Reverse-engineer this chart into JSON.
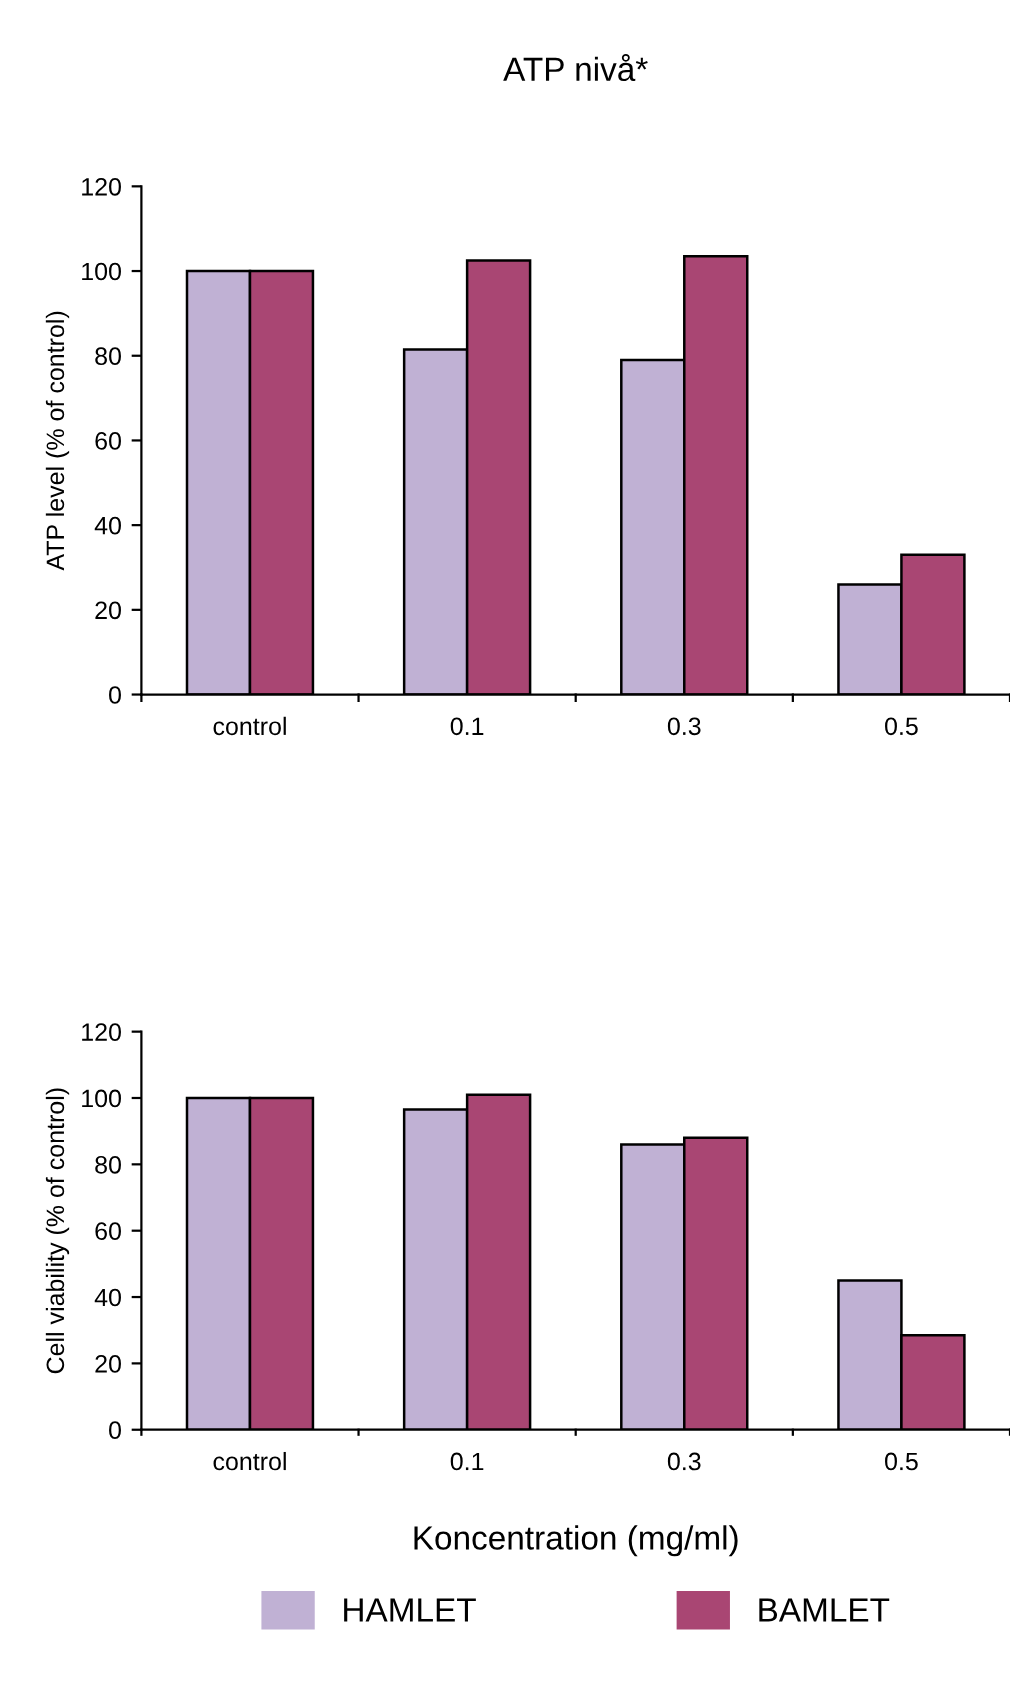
{
  "chart_data": [
    {
      "type": "bar",
      "title": "ATP nivå*",
      "ylabel": "ATP level (% of control)",
      "categories": [
        "control",
        "0.1",
        "0.3",
        "0.5"
      ],
      "series": [
        {
          "color": "#c0b1d4",
          "values": [
            100,
            81.5,
            79,
            26
          ]
        },
        {
          "color": "#a94673",
          "values": [
            100,
            102.5,
            103.5,
            33
          ]
        }
      ],
      "ylim": [
        0,
        120
      ],
      "yticks": [
        0,
        20,
        40,
        60,
        80,
        100,
        120
      ],
      "grid": false,
      "legend": false
    },
    {
      "type": "bar",
      "xlabel": "Koncentration (mg/ml)",
      "ylabel": "Cell viability (% of control)",
      "categories": [
        "control",
        "0.1",
        "0.3",
        "0.5"
      ],
      "series": [
        {
          "name": "HAMLET",
          "color": "#c0b1d4",
          "values": [
            100,
            96.5,
            86,
            45
          ]
        },
        {
          "name": "BAMLET",
          "color": "#a94673",
          "values": [
            100,
            101,
            88,
            28.5
          ]
        }
      ],
      "ylim": [
        0,
        120
      ],
      "yticks": [
        0,
        20,
        40,
        60,
        80,
        100,
        120
      ],
      "grid": false,
      "legend": "bottom"
    }
  ]
}
